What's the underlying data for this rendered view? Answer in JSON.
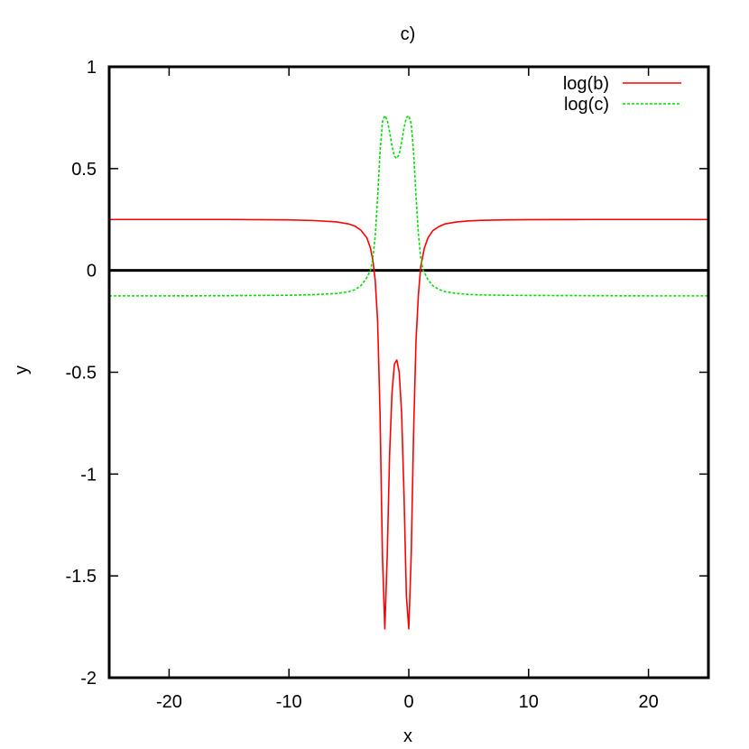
{
  "chart_data": {
    "type": "line",
    "title": "c)",
    "xlabel": "x",
    "ylabel": "y",
    "xlim": [
      -25,
      25
    ],
    "ylim": [
      -2,
      1
    ],
    "x_ticks": [
      -20,
      -10,
      0,
      10,
      20
    ],
    "x_tick_labels": [
      "-20",
      "-10",
      "0",
      "10",
      "20"
    ],
    "y_ticks": [
      -2,
      -1.5,
      -1,
      -0.5,
      0,
      0.5,
      1
    ],
    "y_tick_labels": [
      "-2",
      "-1.5",
      "-1",
      "-0.5",
      "0",
      "0.5",
      "1"
    ],
    "grid": false,
    "legend_position": "top-right",
    "zero_line": true,
    "series": [
      {
        "name": "log(b)",
        "color": "#ff0000",
        "style": "solid",
        "x": [
          -25,
          -20,
          -15,
          -10,
          -8,
          -6,
          -5,
          -4.5,
          -4,
          -3.5,
          -3.2,
          -3,
          -2.8,
          -2.6,
          -2.4,
          -2.2,
          -2.0,
          -1.8,
          -1.6,
          -1.4,
          -1.2,
          -1.0,
          -0.8,
          -0.6,
          -0.4,
          -0.2,
          0,
          0.2,
          0.4,
          0.6,
          0.8,
          1.0,
          1.3,
          1.6,
          2.0,
          2.5,
          3,
          4,
          5,
          6,
          8,
          10,
          15,
          20,
          25
        ],
        "y": [
          0.25,
          0.25,
          0.25,
          0.248,
          0.245,
          0.238,
          0.228,
          0.218,
          0.198,
          0.16,
          0.11,
          0.05,
          -0.05,
          -0.25,
          -0.7,
          -1.4,
          -1.76,
          -1.4,
          -0.9,
          -0.6,
          -0.46,
          -0.44,
          -0.5,
          -0.7,
          -1.1,
          -1.6,
          -1.76,
          -1.4,
          -0.8,
          -0.35,
          -0.12,
          0.02,
          0.11,
          0.16,
          0.195,
          0.215,
          0.228,
          0.238,
          0.243,
          0.246,
          0.248,
          0.249,
          0.25,
          0.25,
          0.25
        ]
      },
      {
        "name": "log(c)",
        "color": "#00dd00",
        "style": "dashed",
        "x": [
          -25,
          -20,
          -15,
          -10,
          -8,
          -6,
          -5,
          -4.5,
          -4,
          -3.6,
          -3.2,
          -3,
          -2.8,
          -2.6,
          -2.4,
          -2.2,
          -2.0,
          -1.8,
          -1.6,
          -1.4,
          -1.2,
          -1.0,
          -0.8,
          -0.6,
          -0.4,
          -0.2,
          0,
          0.2,
          0.4,
          0.6,
          0.8,
          1.0,
          1.2,
          1.6,
          2.0,
          2.5,
          3,
          4,
          5,
          6,
          8,
          10,
          15,
          20,
          25
        ],
        "y": [
          -0.125,
          -0.125,
          -0.124,
          -0.122,
          -0.119,
          -0.113,
          -0.104,
          -0.095,
          -0.075,
          -0.045,
          0.0,
          0.06,
          0.17,
          0.36,
          0.58,
          0.73,
          0.76,
          0.74,
          0.68,
          0.61,
          0.56,
          0.55,
          0.57,
          0.63,
          0.7,
          0.75,
          0.76,
          0.72,
          0.58,
          0.37,
          0.18,
          0.06,
          0.0,
          -0.045,
          -0.075,
          -0.093,
          -0.104,
          -0.113,
          -0.118,
          -0.12,
          -0.122,
          -0.123,
          -0.124,
          -0.125,
          -0.125
        ]
      }
    ]
  }
}
